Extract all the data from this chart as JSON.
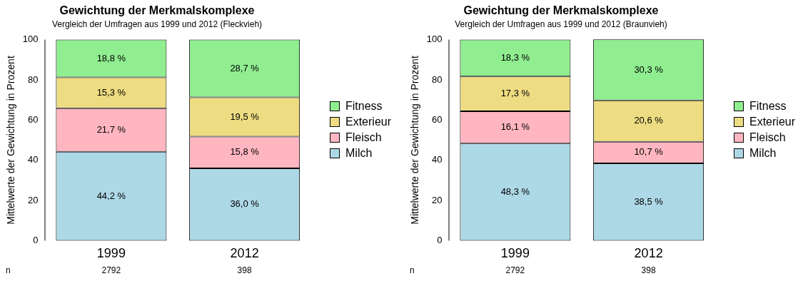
{
  "chart_data": [
    {
      "type": "bar",
      "title": "Gewichtung der Merkmalskomplexe",
      "subtitle": "Vergleich der Umfragen aus 1999 und 2012 (Fleckvieh)",
      "ylabel": "Mittelwerte der Gewichtung in Prozent",
      "categories": [
        "1999",
        "2012"
      ],
      "stacked": true,
      "ylim": [
        0,
        100
      ],
      "yticks": [
        0,
        20,
        40,
        60,
        80,
        100
      ],
      "grid": false,
      "legend": "right",
      "series": [
        {
          "name": "Milch",
          "color": "#add8e6",
          "values": [
            44.2,
            36.0
          ],
          "value_labels": [
            "44,2 %",
            "36,0 %"
          ]
        },
        {
          "name": "Fleisch",
          "color": "#ffb6c1",
          "values": [
            21.7,
            15.8
          ],
          "value_labels": [
            "21,7 %",
            "15,8 %"
          ]
        },
        {
          "name": "Exterieur",
          "color": "#eedc82",
          "values": [
            15.3,
            19.5
          ],
          "value_labels": [
            "15,3 %",
            "19,5 %"
          ]
        },
        {
          "name": "Fitness",
          "color": "#90ee90",
          "values": [
            18.8,
            28.7
          ],
          "value_labels": [
            "18,8 %",
            "28,7 %"
          ]
        }
      ],
      "annotations": [
        "n",
        "2792",
        "398"
      ]
    },
    {
      "type": "bar",
      "title": "Gewichtung der Merkmalskomplexe",
      "subtitle": "Vergleich der Umfragen aus 1999 und 2012 (Braunvieh)",
      "ylabel": "Mittelwerte der Gewichtung in Prozent",
      "categories": [
        "1999",
        "2012"
      ],
      "stacked": true,
      "ylim": [
        0,
        100
      ],
      "yticks": [
        0,
        20,
        40,
        60,
        80,
        100
      ],
      "grid": false,
      "legend": "right",
      "series": [
        {
          "name": "Milch",
          "color": "#add8e6",
          "values": [
            48.3,
            38.5
          ],
          "value_labels": [
            "48,3 %",
            "38,5 %"
          ]
        },
        {
          "name": "Fleisch",
          "color": "#ffb6c1",
          "values": [
            16.1,
            10.7
          ],
          "value_labels": [
            "16,1 %",
            "10,7 %"
          ]
        },
        {
          "name": "Exterieur",
          "color": "#eedc82",
          "values": [
            17.3,
            20.6
          ],
          "value_labels": [
            "17,3 %",
            "20,6 %"
          ]
        },
        {
          "name": "Fitness",
          "color": "#90ee90",
          "values": [
            18.3,
            30.3
          ],
          "value_labels": [
            "18,3 %",
            "30,3 %"
          ]
        }
      ],
      "annotations": [
        "n",
        "2792",
        "398"
      ]
    }
  ]
}
